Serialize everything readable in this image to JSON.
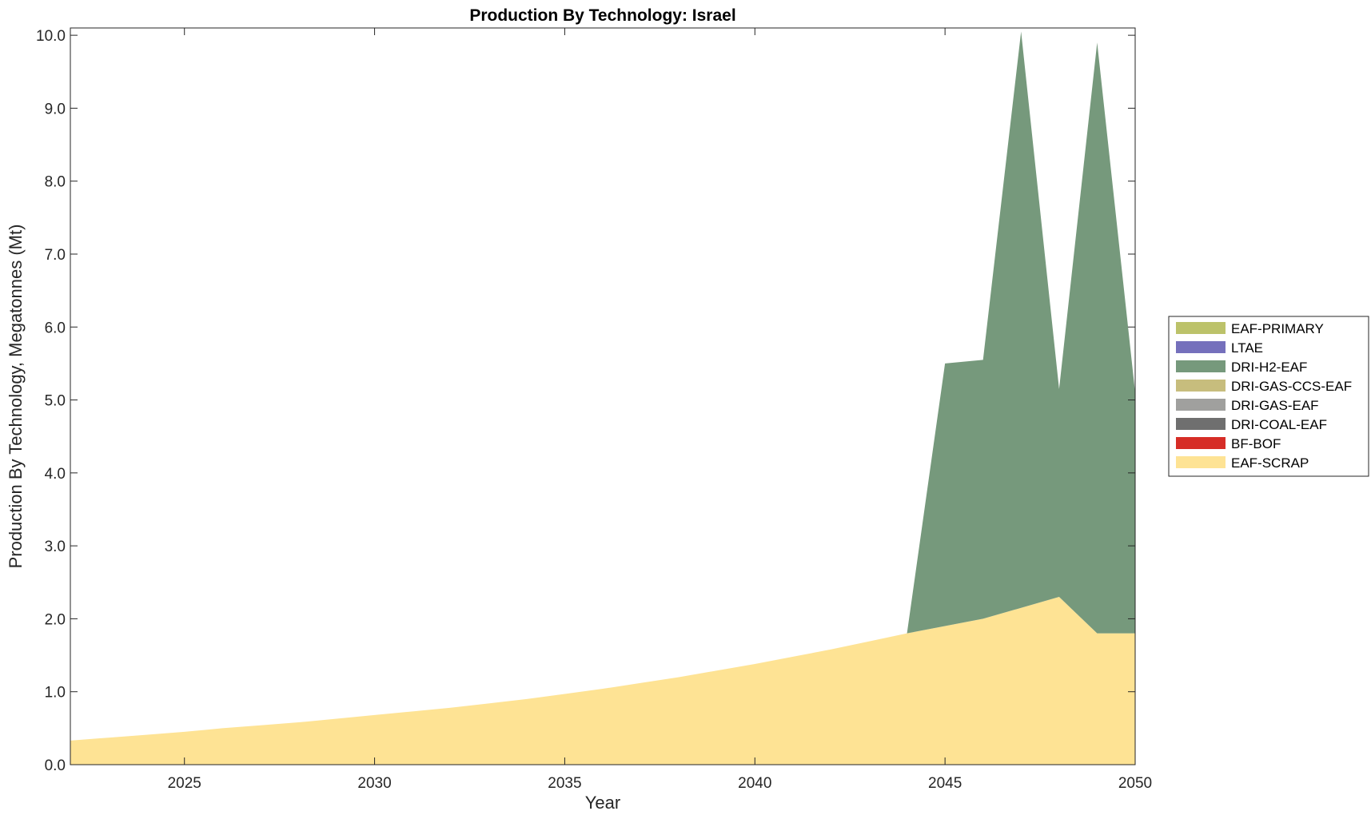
{
  "chart_data": {
    "type": "area",
    "title": "Production By Technology: Israel",
    "xlabel": "Year",
    "ylabel": "Production By Technology, Megatonnes (Mt)",
    "xlim": [
      2022,
      2050
    ],
    "ylim": [
      0,
      10.1
    ],
    "xticks": [
      "2025",
      "2030",
      "2035",
      "2040",
      "2045",
      "2050"
    ],
    "yticks": [
      "0.0",
      "1.0",
      "2.0",
      "3.0",
      "4.0",
      "5.0",
      "6.0",
      "7.0",
      "8.0",
      "9.0",
      "10.0"
    ],
    "grid": false,
    "legend_position": "right",
    "x": [
      2022,
      2023,
      2024,
      2025,
      2026,
      2027,
      2028,
      2029,
      2030,
      2031,
      2032,
      2033,
      2034,
      2035,
      2036,
      2037,
      2038,
      2039,
      2040,
      2041,
      2042,
      2043,
      2044,
      2045,
      2046,
      2047,
      2048,
      2049,
      2050
    ],
    "series": [
      {
        "name": "EAF-PRIMARY",
        "color": "#bcc26a",
        "values": [
          0,
          0,
          0,
          0,
          0,
          0,
          0,
          0,
          0,
          0,
          0,
          0,
          0,
          0,
          0,
          0,
          0,
          0,
          0,
          0,
          0,
          0,
          0,
          0,
          0,
          0,
          0,
          0,
          0
        ]
      },
      {
        "name": "LTAE",
        "color": "#7570bc",
        "values": [
          0,
          0,
          0,
          0,
          0,
          0,
          0,
          0,
          0,
          0,
          0,
          0,
          0,
          0,
          0,
          0,
          0,
          0,
          0,
          0,
          0,
          0,
          0,
          0,
          0,
          0,
          0,
          0,
          0
        ]
      },
      {
        "name": "DRI-H2-EAF",
        "color": "#76997c",
        "values": [
          0,
          0,
          0,
          0,
          0,
          0,
          0,
          0,
          0,
          0,
          0,
          0,
          0,
          0,
          0,
          0,
          0,
          0,
          0,
          0,
          0,
          0,
          0,
          3.6,
          3.55,
          7.9,
          2.85,
          8.1,
          3.3
        ]
      },
      {
        "name": "DRI-GAS-CCS-EAF",
        "color": "#c7bd7d",
        "values": [
          0,
          0,
          0,
          0,
          0,
          0,
          0,
          0,
          0,
          0,
          0,
          0,
          0,
          0,
          0,
          0,
          0,
          0,
          0,
          0,
          0,
          0,
          0,
          0,
          0,
          0,
          0,
          0,
          0
        ]
      },
      {
        "name": "DRI-GAS-EAF",
        "color": "#a0a09e",
        "values": [
          0,
          0,
          0,
          0,
          0,
          0,
          0,
          0,
          0,
          0,
          0,
          0,
          0,
          0,
          0,
          0,
          0,
          0,
          0,
          0,
          0,
          0,
          0,
          0,
          0,
          0,
          0,
          0,
          0
        ]
      },
      {
        "name": "DRI-COAL-EAF",
        "color": "#6f6f6f",
        "values": [
          0,
          0,
          0,
          0,
          0,
          0,
          0,
          0,
          0,
          0,
          0,
          0,
          0,
          0,
          0,
          0,
          0,
          0,
          0,
          0,
          0,
          0,
          0,
          0,
          0,
          0,
          0,
          0,
          0
        ]
      },
      {
        "name": "BF-BOF",
        "color": "#d62d27",
        "values": [
          0,
          0,
          0,
          0,
          0,
          0,
          0,
          0,
          0,
          0,
          0,
          0,
          0,
          0,
          0,
          0,
          0,
          0,
          0,
          0,
          0,
          0,
          0,
          0,
          0,
          0,
          0,
          0,
          0
        ]
      },
      {
        "name": "EAF-SCRAP",
        "color": "#fee394",
        "values": [
          0.33,
          0.37,
          0.41,
          0.45,
          0.5,
          0.54,
          0.58,
          0.63,
          0.68,
          0.73,
          0.78,
          0.84,
          0.9,
          0.97,
          1.04,
          1.12,
          1.2,
          1.29,
          1.38,
          1.48,
          1.58,
          1.69,
          1.8,
          1.9,
          2.0,
          2.15,
          2.3,
          1.8,
          1.8
        ]
      }
    ],
    "stack_order": [
      "EAF-SCRAP",
      "BF-BOF",
      "DRI-COAL-EAF",
      "DRI-GAS-EAF",
      "DRI-GAS-CCS-EAF",
      "DRI-H2-EAF",
      "LTAE",
      "EAF-PRIMARY"
    ]
  }
}
